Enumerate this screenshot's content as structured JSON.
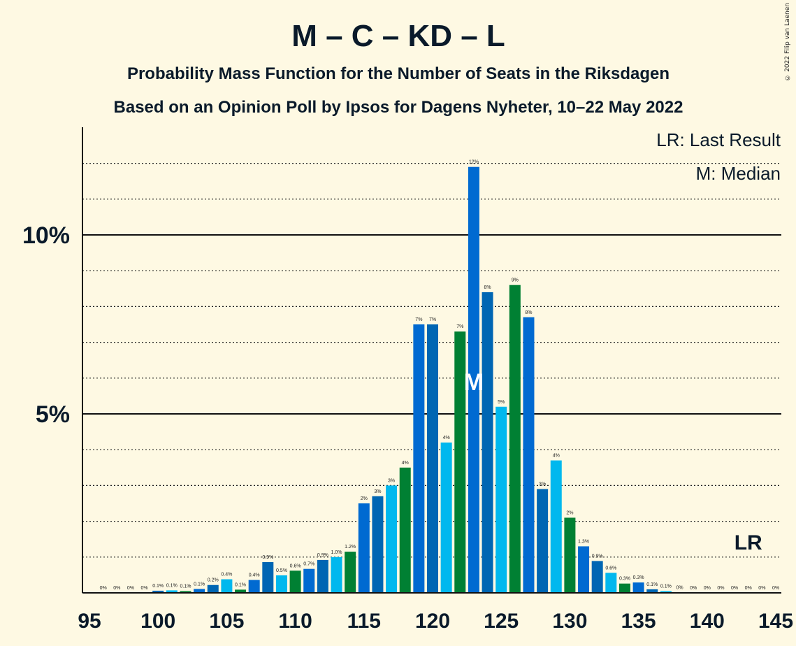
{
  "credit": "© 2022 Filip van Laenen",
  "chart_data": {
    "type": "bar",
    "title": "M – C – KD – L",
    "subtitle": "Probability Mass Function for the Number of Seats in the Riksdagen",
    "subtitle2": "Based on an Opinion Poll by Ipsos for Dagens Nyheter, 10–22 May 2022",
    "legend": [
      "LR: Last Result",
      "M: Median"
    ],
    "xlim": [
      95,
      145
    ],
    "ylim": [
      0,
      13
    ],
    "x_ticks": [
      95,
      100,
      105,
      110,
      115,
      120,
      125,
      130,
      135,
      140,
      145
    ],
    "y_ticks": [
      {
        "value": 5,
        "label": "5%"
      },
      {
        "value": 10,
        "label": "10%"
      }
    ],
    "gridlines_minor": [
      1,
      2,
      3,
      4,
      6,
      7,
      8,
      9,
      11,
      12
    ],
    "gridlines_major": [
      5,
      10
    ],
    "median": 123,
    "last_result": 143,
    "median_label": "M",
    "last_result_label": "LR",
    "colors": [
      "#0066B3",
      "#00B8EE",
      "#008033",
      "#006AD1"
    ],
    "x": [
      96,
      97,
      98,
      99,
      100,
      101,
      102,
      103,
      104,
      105,
      106,
      107,
      108,
      109,
      110,
      111,
      112,
      113,
      114,
      115,
      116,
      117,
      118,
      119,
      120,
      121,
      122,
      123,
      124,
      125,
      126,
      127,
      128,
      129,
      130,
      131,
      132,
      133,
      134,
      135,
      136,
      137,
      138,
      139,
      140,
      141,
      142,
      143,
      144,
      145
    ],
    "values": [
      0,
      0,
      0,
      0,
      0.06,
      0.07,
      0.05,
      0.11,
      0.22,
      0.38,
      0.09,
      0.36,
      0.86,
      0.49,
      0.62,
      0.67,
      0.92,
      1.0,
      1.15,
      2.5,
      2.7,
      3.0,
      3.5,
      7.5,
      7.5,
      4.2,
      7.3,
      11.9,
      8.4,
      5.2,
      8.6,
      7.7,
      2.9,
      3.7,
      2.1,
      1.3,
      0.89,
      0.56,
      0.26,
      0.29,
      0.1,
      0.05,
      0.01,
      0,
      0,
      0,
      0,
      0,
      0,
      0
    ],
    "data_labels": [
      "0%",
      "0%",
      "0%",
      "0%",
      "0.1%",
      "0.1%",
      "0.1%",
      "0.1%",
      "0.2%",
      "0.4%",
      "0.1%",
      "0.4%",
      "0.9%",
      "0.5%",
      "0.6%",
      "0.7%",
      "0.9%",
      "1.0%",
      "1.2%",
      "2%",
      "3%",
      "3%",
      "4%",
      "7%",
      "7%",
      "4%",
      "7%",
      "12%",
      "8%",
      "5%",
      "9%",
      "8%",
      "3%",
      "4%",
      "2%",
      "1.3%",
      "0.9%",
      "0.6%",
      "0.3%",
      "0.3%",
      "0.1%",
      "0.1%",
      "0%",
      "0%",
      "0%",
      "0%",
      "0%",
      "0%",
      "0%",
      "0%"
    ]
  }
}
